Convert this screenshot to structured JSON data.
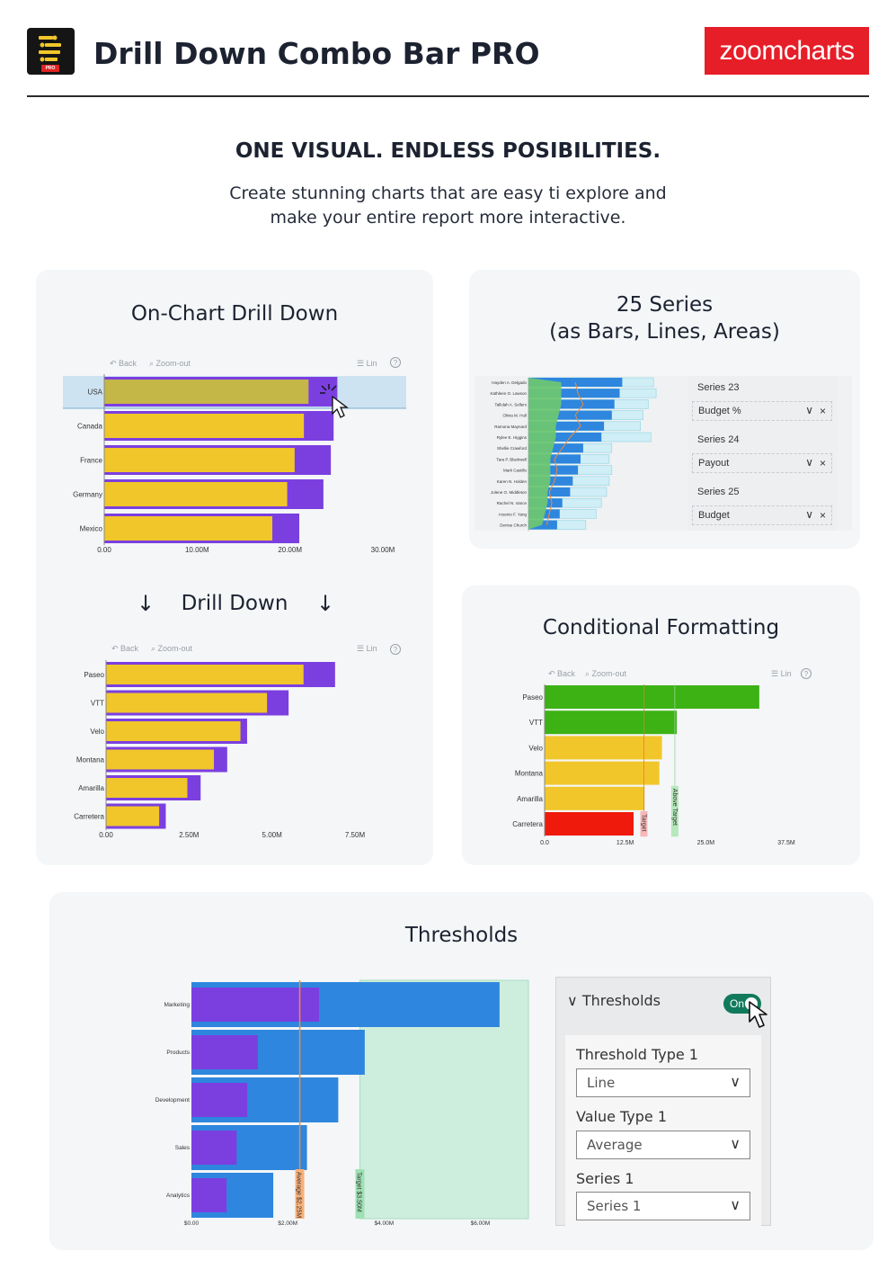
{
  "header": {
    "title": "Drill Down Combo Bar PRO",
    "logo_badge": "PRO",
    "brand": "zoomcharts"
  },
  "hero": {
    "tagline": "ONE VISUAL. ENDLESS POSIBILITIES.",
    "sub_line1": "Create stunning charts that are easy ti explore and",
    "sub_line2": "make your entire report more interactive."
  },
  "toolbar": {
    "back": "Back",
    "zoom_out": "Zoom-out",
    "lin": "Lin",
    "help": "?"
  },
  "drill": {
    "title": "On-Chart Drill Down",
    "mid_label": "Drill Down",
    "arrow": "↓"
  },
  "series_card": {
    "title_line1": "25 Series",
    "title_line2": "(as Bars, Lines, Areas)",
    "panel": [
      {
        "series": "Series 23",
        "value": "Budget %"
      },
      {
        "series": "Series 24",
        "value": "Payout"
      },
      {
        "series": "Series 25",
        "value": "Budget"
      }
    ],
    "chevron": "∨",
    "remove": "×"
  },
  "cond_card": {
    "title": "Conditional Formatting",
    "target_label": "Target",
    "above_label": "Above Target"
  },
  "thresholds_card": {
    "title": "Thresholds",
    "avg_label": "Average $2.25M",
    "target_label": "Target $3.50M",
    "panel": {
      "section": "Thresholds",
      "toggle": "On",
      "fields": [
        {
          "label": "Threshold Type 1",
          "value": "Line"
        },
        {
          "label": "Value Type 1",
          "value": "Average"
        },
        {
          "label": "Series 1",
          "value": "Series 1"
        }
      ],
      "chevron": "∨",
      "collapse": "∨"
    }
  },
  "chart_data": [
    {
      "type": "bar",
      "orientation": "horizontal",
      "categories": [
        "USA",
        "Canada",
        "France",
        "Germany",
        "Mexico"
      ],
      "series": [
        {
          "values": [
            22.0,
            21.5,
            20.5,
            19.7,
            18.1
          ]
        },
        {
          "values": [
            25.1,
            24.7,
            24.4,
            23.6,
            21.0
          ]
        }
      ],
      "xticks": [
        "0.00",
        "10.00M",
        "20.00M",
        "30.00M"
      ],
      "xlim": [
        0,
        30
      ],
      "colors": [
        "#f1c62a",
        "#7b3fe0"
      ],
      "highlighted": "USA"
    },
    {
      "type": "bar",
      "orientation": "horizontal",
      "categories": [
        "Paseo",
        "VTT",
        "Velo",
        "Montana",
        "Amarilla",
        "Carretera"
      ],
      "series": [
        {
          "values": [
            5.95,
            4.85,
            4.05,
            3.25,
            2.45,
            1.6
          ]
        },
        {
          "values": [
            6.9,
            5.5,
            4.25,
            3.65,
            2.85,
            1.8
          ]
        }
      ],
      "xticks": [
        "0.00",
        "2.50M",
        "5.00M",
        "7.50M"
      ],
      "xlim": [
        0,
        7.5
      ],
      "colors": [
        "#f1c62a",
        "#7b3fe0"
      ]
    },
    {
      "type": "bar",
      "orientation": "horizontal",
      "categories": [
        "Hayden A. Delgado",
        "Kathleen O. Lawson",
        "Tallulah A. Sellers",
        "Olivia M. Hull",
        "Ramona Maynard",
        "Rylee E. Higgins",
        "Shellie Crawford",
        "Tara P. Blackwell",
        "Mark Castillo",
        "Karen N. Holden",
        "Jolene O. Middleton",
        "Rachel N. Vance",
        "Arsenio F. Yang",
        "Denise Church"
      ],
      "series": [
        {
          "type": "area",
          "values": [
            12,
            12,
            12,
            11,
            10,
            10,
            9,
            8,
            8,
            8,
            7,
            7,
            6,
            5
          ]
        },
        {
          "type": "bar",
          "values": [
            36,
            35,
            33,
            32,
            29,
            28,
            21,
            20,
            19,
            17,
            16,
            13,
            12,
            11
          ]
        },
        {
          "type": "bar",
          "values": [
            48,
            49,
            46,
            44,
            43,
            47,
            32,
            31,
            32,
            31,
            30,
            28,
            26,
            22
          ]
        },
        {
          "type": "line",
          "values": [
            18,
            19,
            21,
            18,
            20,
            16,
            13,
            10,
            11,
            10,
            8,
            9,
            8,
            7
          ]
        }
      ],
      "colors": [
        "#6cc673",
        "#2e86de",
        "#cfeef5",
        "#f08a3a"
      ]
    },
    {
      "type": "bar",
      "orientation": "horizontal",
      "categories": [
        "Paseo",
        "VTT",
        "Velo",
        "Montana",
        "Amarilla",
        "Carretera"
      ],
      "values": [
        33.3,
        20.5,
        18.2,
        17.8,
        15.5,
        13.8
      ],
      "xticks": [
        "0.0",
        "12.5M",
        "25.0M",
        "37.5M"
      ],
      "xlim": [
        0,
        37.5
      ],
      "thresholds": {
        "Target": 15.4,
        "Above Target": 20.2
      },
      "colors": {
        "above": "#3cb214",
        "target": "#f1c62a",
        "below": "#f01a0c"
      }
    },
    {
      "type": "bar",
      "orientation": "horizontal",
      "categories": [
        "Marketing",
        "Products",
        "Development",
        "Sales",
        "Analytics"
      ],
      "series": [
        {
          "values": [
            2.65,
            1.38,
            1.16,
            0.94,
            0.73
          ]
        },
        {
          "values": [
            6.4,
            3.6,
            3.05,
            2.4,
            1.7
          ]
        }
      ],
      "xticks": [
        "$0.00",
        "$2.00M",
        "$4.00M",
        "$6.00M"
      ],
      "xlim": [
        0,
        7
      ],
      "thresholds": {
        "Average": 2.25,
        "Target": 3.5
      },
      "colors": [
        "#7b3fe0",
        "#2e86de",
        "#cdeedd",
        "#f08a3a"
      ]
    }
  ]
}
